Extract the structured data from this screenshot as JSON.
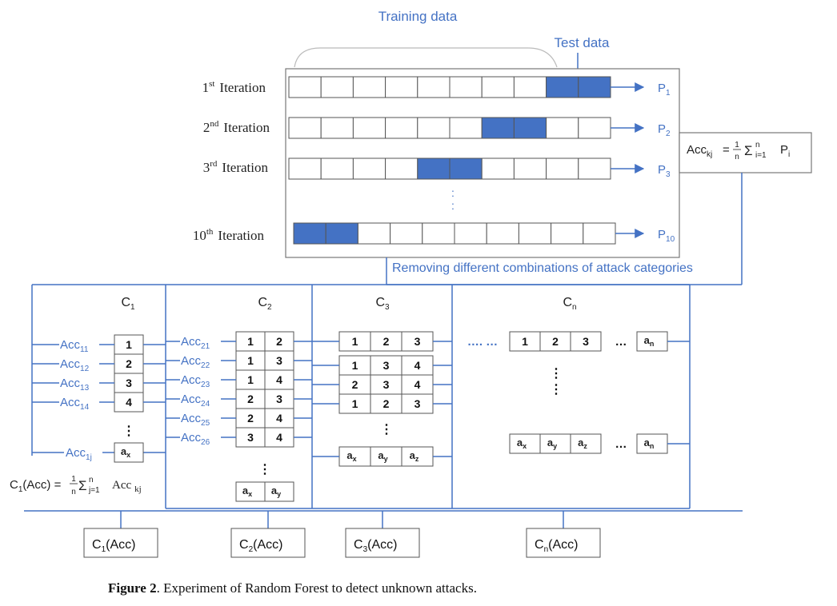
{
  "top": {
    "training_label": "Training data",
    "test_label": "Test data",
    "iterations": [
      {
        "ord": "1",
        "sup": "st",
        "word": "Iteration",
        "pred": "P",
        "pred_sub": "1",
        "test_cells": [
          8,
          9
        ]
      },
      {
        "ord": "2",
        "sup": "nd",
        "word": "Iteration",
        "pred": "P",
        "pred_sub": "2",
        "test_cells": [
          6,
          7
        ]
      },
      {
        "ord": "3",
        "sup": "rd",
        "word": "Iteration",
        "pred": "P",
        "pred_sub": "3",
        "test_cells": [
          4,
          5
        ]
      },
      {
        "ord": "10",
        "sup": "th",
        "word": "Iteration",
        "pred": "P",
        "pred_sub": "10",
        "test_cells": [
          0,
          1
        ]
      }
    ],
    "formula": {
      "lhs": "Acc",
      "lhs_sub": "kj",
      "eq": "=",
      "num": "1",
      "den": "n",
      "sigma": "Σ",
      "sup": "n",
      "sub": "i=1",
      "term": "P",
      "term_sub": "i"
    },
    "removing_label": "Removing different combinations of attack categories"
  },
  "columns": [
    {
      "name": "C",
      "sub": "1"
    },
    {
      "name": "C",
      "sub": "2"
    },
    {
      "name": "C",
      "sub": "3"
    },
    {
      "name": "C",
      "sub": "n"
    }
  ],
  "c1": {
    "acc_labels": [
      {
        "base": "Acc",
        "sub": "11"
      },
      {
        "base": "Acc",
        "sub": "12"
      },
      {
        "base": "Acc",
        "sub": "13"
      },
      {
        "base": "Acc",
        "sub": "14"
      },
      {
        "base": "Acc",
        "sub": "1j"
      }
    ],
    "cells": [
      "1",
      "2",
      "3",
      "4"
    ],
    "last_cell": {
      "base": "a",
      "sub": "x"
    },
    "formula": {
      "lhs": "C",
      "lhs_sub": "1",
      "lhs_rest": "(Acc) =",
      "num": "1",
      "den": "n",
      "sigma": "Σ",
      "sup": "n",
      "sub": "j=1",
      "term": "Acc",
      "term_sub": "kj"
    }
  },
  "c2": {
    "acc_labels": [
      {
        "base": "Acc",
        "sub": "21"
      },
      {
        "base": "Acc",
        "sub": "22"
      },
      {
        "base": "Acc",
        "sub": "23"
      },
      {
        "base": "Acc",
        "sub": "24"
      },
      {
        "base": "Acc",
        "sub": "25"
      },
      {
        "base": "Acc",
        "sub": "26"
      }
    ],
    "rows": [
      [
        "1",
        "2"
      ],
      [
        "1",
        "3"
      ],
      [
        "1",
        "4"
      ],
      [
        "2",
        "3"
      ],
      [
        "2",
        "4"
      ],
      [
        "3",
        "4"
      ]
    ],
    "last_row": [
      {
        "base": "a",
        "sub": "x"
      },
      {
        "base": "a",
        "sub": "y"
      }
    ]
  },
  "c3": {
    "rows": [
      [
        "1",
        "2",
        "3"
      ],
      [
        "1",
        "3",
        "4"
      ],
      [
        "2",
        "3",
        "4"
      ],
      [
        "1",
        "2",
        "3"
      ]
    ],
    "last_row": [
      {
        "base": "a",
        "sub": "x"
      },
      {
        "base": "a",
        "sub": "y"
      },
      {
        "base": "a",
        "sub": "z"
      }
    ]
  },
  "cn": {
    "sep_dots": "…. …",
    "row_cells": [
      "1",
      "2",
      "3"
    ],
    "row_ellipsis": "…",
    "row_end": {
      "base": "a",
      "sub": "n"
    },
    "last_row": [
      {
        "base": "a",
        "sub": "x"
      },
      {
        "base": "a",
        "sub": "y"
      },
      {
        "base": "a",
        "sub": "z"
      }
    ],
    "last_ellipsis": "…",
    "last_end": {
      "base": "a",
      "sub": "n"
    }
  },
  "results": [
    {
      "base": "C",
      "sub": "1",
      "rest": "(Acc)"
    },
    {
      "base": "C",
      "sub": "2",
      "rest": "(Acc)"
    },
    {
      "base": "C",
      "sub": "3",
      "rest": "(Acc)"
    },
    {
      "base": "C",
      "sub": "n",
      "rest": "(Acc)"
    }
  ],
  "caption": {
    "bold": "Figure 2",
    "rest": ".  Experiment of Random Forest to detect unknown attacks."
  },
  "colors": {
    "blue": "#4472c4",
    "line": "#4472c4",
    "border": "#555555"
  }
}
